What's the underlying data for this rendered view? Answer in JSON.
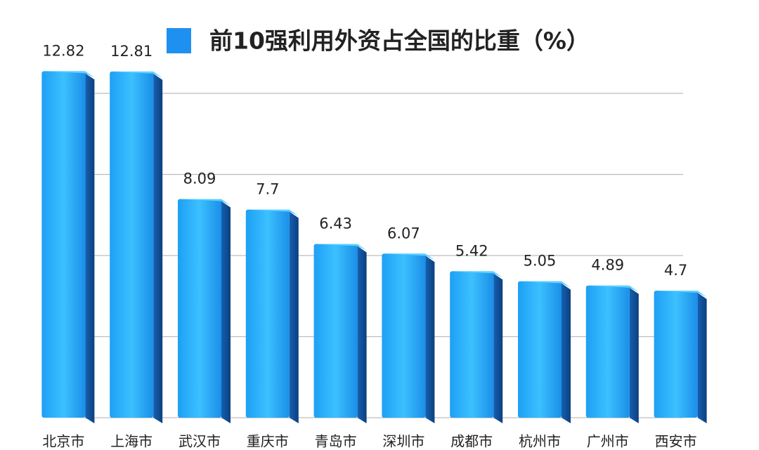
{
  "chart_data": {
    "type": "bar3d",
    "categories": [
      "北京市",
      "上海市",
      "武汉市",
      "重庆市",
      "青岛市",
      "深圳市",
      "成都市",
      "杭州市",
      "广州市",
      "西安市"
    ],
    "series": [
      {
        "name": "前10强利用外资占全国的比重（%）",
        "color": "#1e90f0",
        "values": [
          12.82,
          12.81,
          8.09,
          7.7,
          6.43,
          6.07,
          5.42,
          5.05,
          4.89,
          4.7
        ]
      }
    ],
    "ylim": [
      0,
      14
    ],
    "yticks": [
      0,
      3,
      6,
      9,
      12
    ],
    "grid": true,
    "ytick_labels": false,
    "legend": "top"
  }
}
